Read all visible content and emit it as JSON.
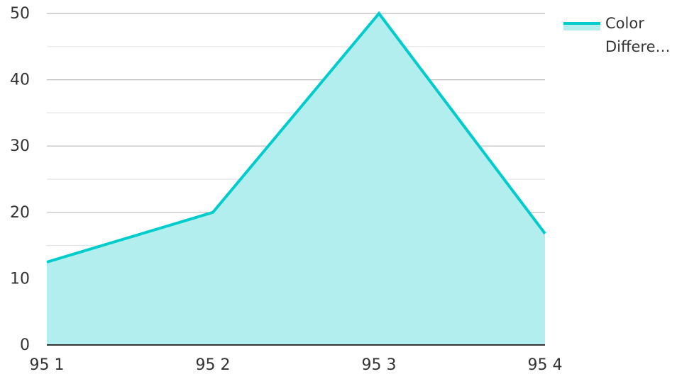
{
  "chart_data": {
    "type": "area",
    "categories": [
      "95 1",
      "95 2",
      "95 3",
      "95 4"
    ],
    "series": [
      {
        "name": "Color Differe…",
        "values": [
          12.5,
          20,
          50,
          16.8
        ],
        "color": "#00CCCC",
        "fill": "#B2EEEE"
      }
    ],
    "ylim": [
      0,
      50
    ],
    "yticks": [
      0,
      10,
      20,
      30,
      40,
      50
    ],
    "ytick_labels": [
      "0",
      "10",
      "20",
      "30",
      "40",
      "50"
    ],
    "grid": true,
    "legend": {
      "position": "top-right",
      "lines": [
        "Color",
        "Differe…"
      ]
    },
    "colors": {
      "grid_major": "#BBBBBB",
      "grid_minor": "#E5E5E5",
      "axis": "#333333"
    }
  }
}
